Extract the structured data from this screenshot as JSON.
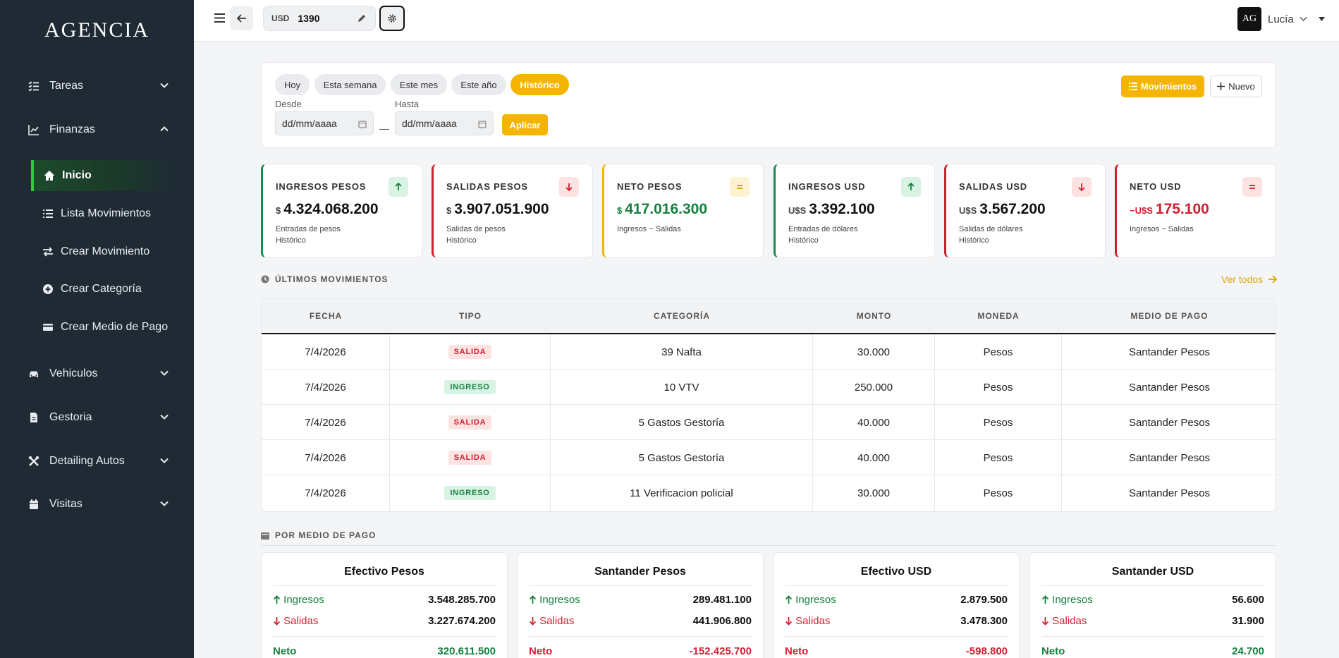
{
  "app": {
    "brand": "AGENCIA"
  },
  "sidebar": {
    "items": [
      {
        "label": "Tareas",
        "icon": "list-check-icon"
      },
      {
        "label": "Finanzas",
        "icon": "chart-line-icon"
      },
      {
        "label": "Vehiculos",
        "icon": "car-icon"
      },
      {
        "label": "Gestoria",
        "icon": "document-icon"
      },
      {
        "label": "Detailing Autos",
        "icon": "tools-icon"
      },
      {
        "label": "Visitas",
        "icon": "calendar-icon"
      }
    ],
    "finanzas_sub": [
      {
        "label": "Inicio",
        "icon": "home-icon",
        "active": true
      },
      {
        "label": "Lista Movimientos",
        "icon": "list-icon"
      },
      {
        "label": "Crear Movimiento",
        "icon": "exchange-icon"
      },
      {
        "label": "Crear Categoría",
        "icon": "plus-circle-icon"
      },
      {
        "label": "Crear Medio de Pago",
        "icon": "credit-card-icon"
      }
    ]
  },
  "topbar": {
    "currency_code": "USD",
    "currency_value": "1390",
    "user_initials": "AG",
    "user_name": "Lucía"
  },
  "filters": {
    "periods": [
      "Hoy",
      "Esta semana",
      "Este mes",
      "Este año",
      "Histórico"
    ],
    "active_period": "Histórico",
    "desde_label": "Desde",
    "hasta_label": "Hasta",
    "desde_placeholder": "dd/mm/aaaa",
    "hasta_placeholder": "dd/mm/aaaa",
    "separator": "—",
    "apply_label": "Aplicar",
    "movimientos_label": "Movimientos",
    "nuevo_label": "Nuevo"
  },
  "stats": [
    {
      "title": "INGRESOS PESOS",
      "prefix": "$",
      "value": "4.324.068.200",
      "sub1": "Entradas de pesos",
      "sub2": "Histórico",
      "color": "#1a8a4a",
      "badge": "arrow-up-icon"
    },
    {
      "title": "SALIDAS PESOS",
      "prefix": "$",
      "value": "3.907.051.900",
      "sub1": "Salidas de pesos",
      "sub2": "Histórico",
      "color": "#d11f2f",
      "badge": "arrow-down-icon"
    },
    {
      "title": "NETO PESOS",
      "prefix": "$",
      "value": "417.016.300",
      "sub1": "Ingresos − Salidas",
      "sub2": "",
      "color": "#f4b400",
      "badge": "equals-icon"
    },
    {
      "title": "INGRESOS USD",
      "prefix": "U$S",
      "value": "3.392.100",
      "sub1": "Entradas de dólares",
      "sub2": "Histórico",
      "color": "#1a8a4a",
      "badge": "arrow-up-icon"
    },
    {
      "title": "SALIDAS USD",
      "prefix": "U$S",
      "value": "3.567.200",
      "sub1": "Salidas de dólares",
      "sub2": "Histórico",
      "color": "#d11f2f",
      "badge": "arrow-down-icon"
    },
    {
      "title": "NETO USD",
      "prefix": "−U$S",
      "value": "175.100",
      "sub1": "Ingresos − Salidas",
      "sub2": "",
      "color": "#d11f2f",
      "badge": "equals-icon"
    }
  ],
  "movimientos": {
    "title": "ÚLTIMOS MOVIMIENTOS",
    "ver_todos": "Ver todos",
    "headers": [
      "FECHA",
      "TIPO",
      "CATEGORÍA",
      "MONTO",
      "MONEDA",
      "MEDIO DE PAGO"
    ],
    "rows": [
      {
        "fecha": "7/4/2026",
        "tipo": "SALIDA",
        "categoria": "39 Nafta",
        "monto": "30.000",
        "moneda": "Pesos",
        "medio": "Santander Pesos"
      },
      {
        "fecha": "7/4/2026",
        "tipo": "INGRESO",
        "categoria": "10 VTV",
        "monto": "250.000",
        "moneda": "Pesos",
        "medio": "Santander Pesos"
      },
      {
        "fecha": "7/4/2026",
        "tipo": "SALIDA",
        "categoria": "5 Gastos Gestoría",
        "monto": "40.000",
        "moneda": "Pesos",
        "medio": "Santander Pesos"
      },
      {
        "fecha": "7/4/2026",
        "tipo": "SALIDA",
        "categoria": "5 Gastos Gestoría",
        "monto": "40.000",
        "moneda": "Pesos",
        "medio": "Santander Pesos"
      },
      {
        "fecha": "7/4/2026",
        "tipo": "INGRESO",
        "categoria": "11 Verificacion policial",
        "monto": "30.000",
        "moneda": "Pesos",
        "medio": "Santander Pesos"
      }
    ]
  },
  "medios": {
    "title": "POR MEDIO DE PAGO",
    "ingresos_label": "Ingresos",
    "salidas_label": "Salidas",
    "neto_label": "Neto",
    "cards": [
      {
        "name": "Efectivo Pesos",
        "ingresos": "3.548.285.700",
        "salidas": "3.227.674.200",
        "neto": "320.611.500",
        "neto_positive": true
      },
      {
        "name": "Santander Pesos",
        "ingresos": "289.481.100",
        "salidas": "441.906.800",
        "neto": "-152.425.700",
        "neto_positive": false
      },
      {
        "name": "Efectivo USD",
        "ingresos": "2.879.500",
        "salidas": "3.478.300",
        "neto": "-598.800",
        "neto_positive": false
      },
      {
        "name": "Santander USD",
        "ingresos": "56.600",
        "salidas": "31.900",
        "neto": "24.700",
        "neto_positive": true
      }
    ]
  }
}
